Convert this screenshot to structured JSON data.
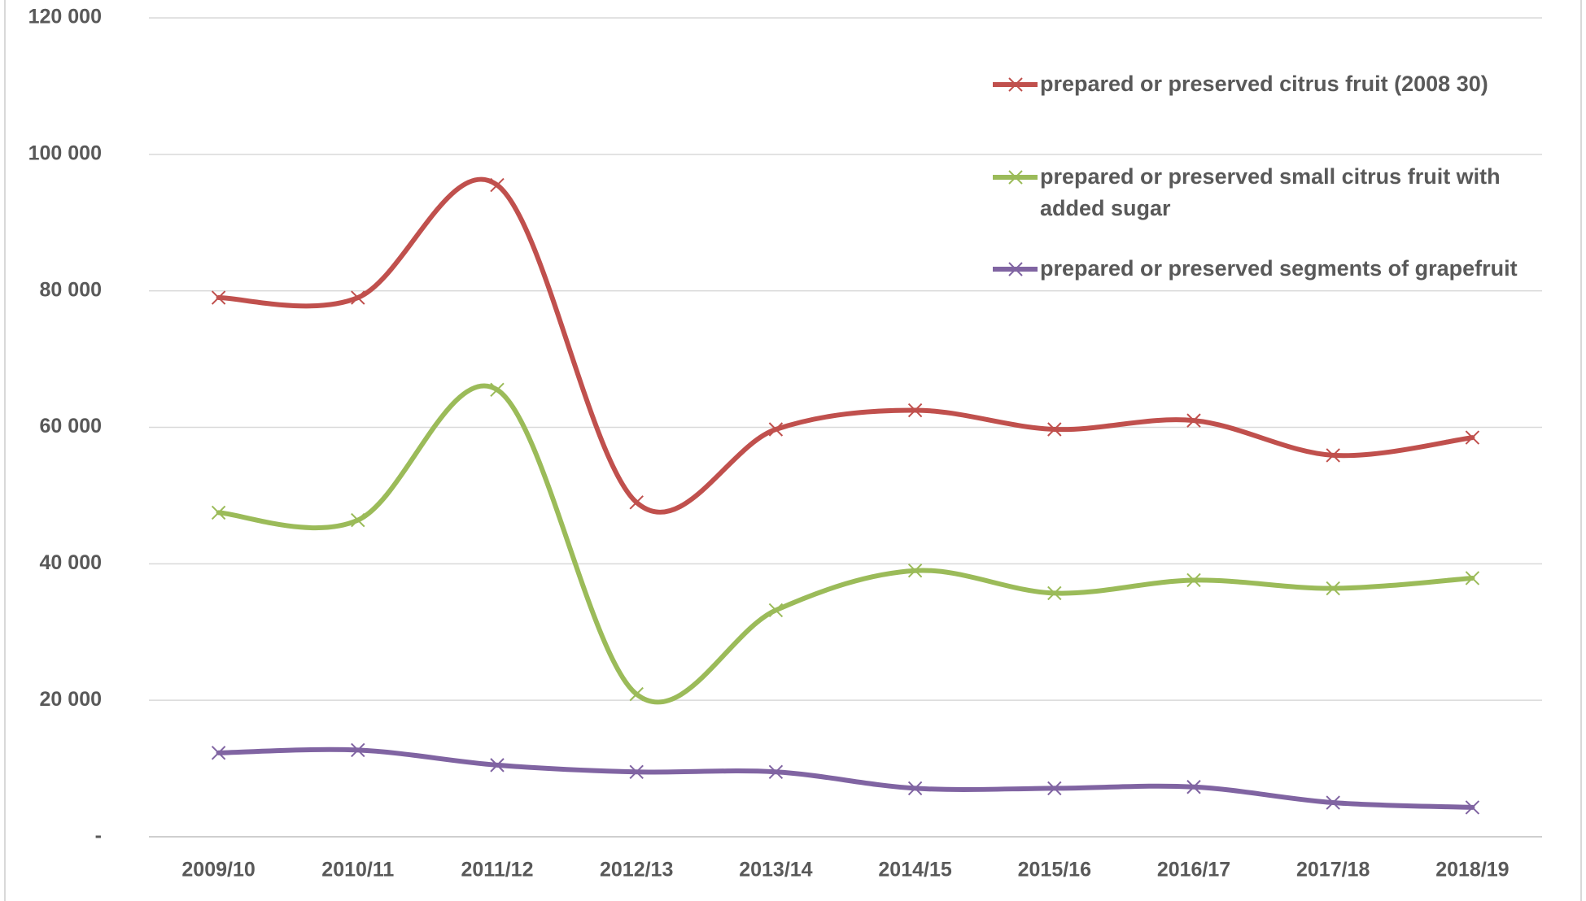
{
  "chart_data": {
    "type": "line",
    "categories": [
      "2009/10",
      "2010/11",
      "2011/12",
      "2012/13",
      "2013/14",
      "2014/15",
      "2015/16",
      "2016/17",
      "2017/18",
      "2018/19"
    ],
    "series": [
      {
        "name": "prepared or preserved citrus fruit (2008 30)",
        "color": "#c0504d",
        "values": [
          79000,
          79000,
          95500,
          49000,
          59700,
          62500,
          59700,
          61000,
          55900,
          58500
        ]
      },
      {
        "name": "prepared or preserved small citrus fruit with added sugar",
        "color": "#9bbb59",
        "values": [
          47500,
          46400,
          65500,
          20900,
          33200,
          39000,
          35700,
          37600,
          36400,
          37900
        ]
      },
      {
        "name": "prepared or preserved segments of grapefruit",
        "color": "#8064a2",
        "values": [
          12300,
          12700,
          10500,
          9500,
          9500,
          7100,
          7100,
          7300,
          5000,
          4300
        ]
      }
    ],
    "ylim": [
      0,
      120000
    ],
    "yticks": [
      {
        "value": 0,
        "label": "-"
      },
      {
        "value": 20000,
        "label": "20 000"
      },
      {
        "value": 40000,
        "label": "40 000"
      },
      {
        "value": 60000,
        "label": "60 000"
      },
      {
        "value": 80000,
        "label": "80 000"
      },
      {
        "value": 100000,
        "label": "100 000"
      },
      {
        "value": 120000,
        "label": "120 000"
      }
    ],
    "grid": true,
    "legend": "upper right"
  }
}
